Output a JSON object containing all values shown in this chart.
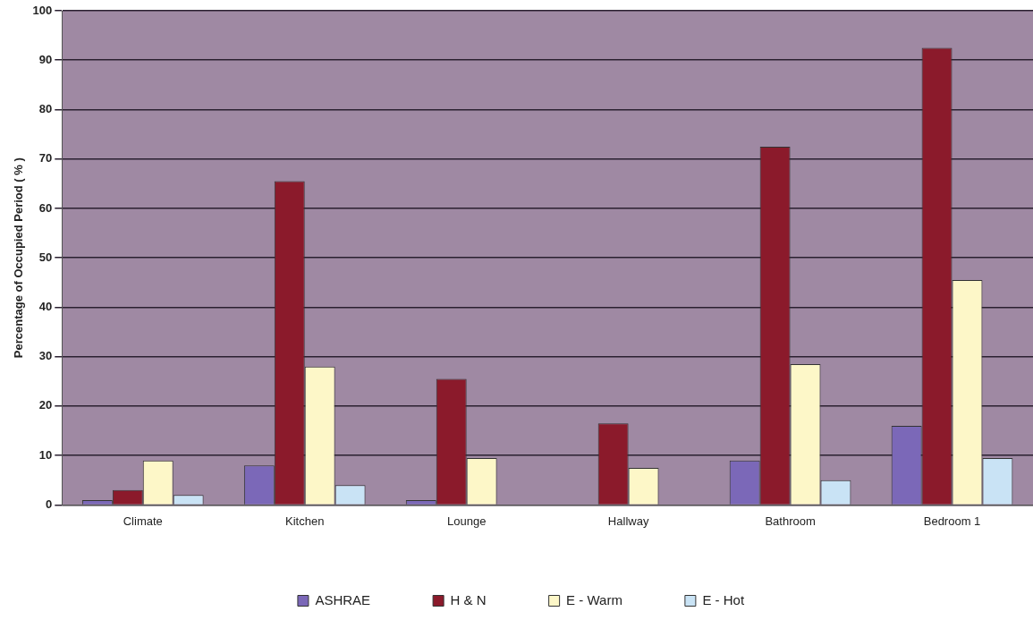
{
  "chart_data": {
    "type": "bar",
    "ylabel": "Percentage of Occupied Period ( % )",
    "categories": [
      "Climate",
      "Kitchen",
      "Lounge",
      "Hallway",
      "Bathroom",
      "Bedroom 1"
    ],
    "series": [
      {
        "name": "ASHRAE",
        "color": "#7b68b8",
        "values": [
          1,
          8,
          1,
          0,
          9,
          16
        ]
      },
      {
        "name": "H & N",
        "color": "#8b1a2b",
        "values": [
          3,
          65.5,
          25.5,
          16.5,
          72.5,
          92.5
        ]
      },
      {
        "name": "E - Warm",
        "color": "#fdf7c8",
        "values": [
          9,
          28,
          9.5,
          7.5,
          28.5,
          45.5
        ]
      },
      {
        "name": "E - Hot",
        "color": "#c9e3f5",
        "values": [
          2,
          4,
          0,
          0,
          5,
          9.5
        ]
      }
    ],
    "ylim": [
      0,
      100
    ],
    "yticks": [
      0,
      10,
      20,
      30,
      40,
      50,
      60,
      70,
      80,
      90,
      100
    ],
    "grid": "y",
    "legend": "bottom"
  }
}
